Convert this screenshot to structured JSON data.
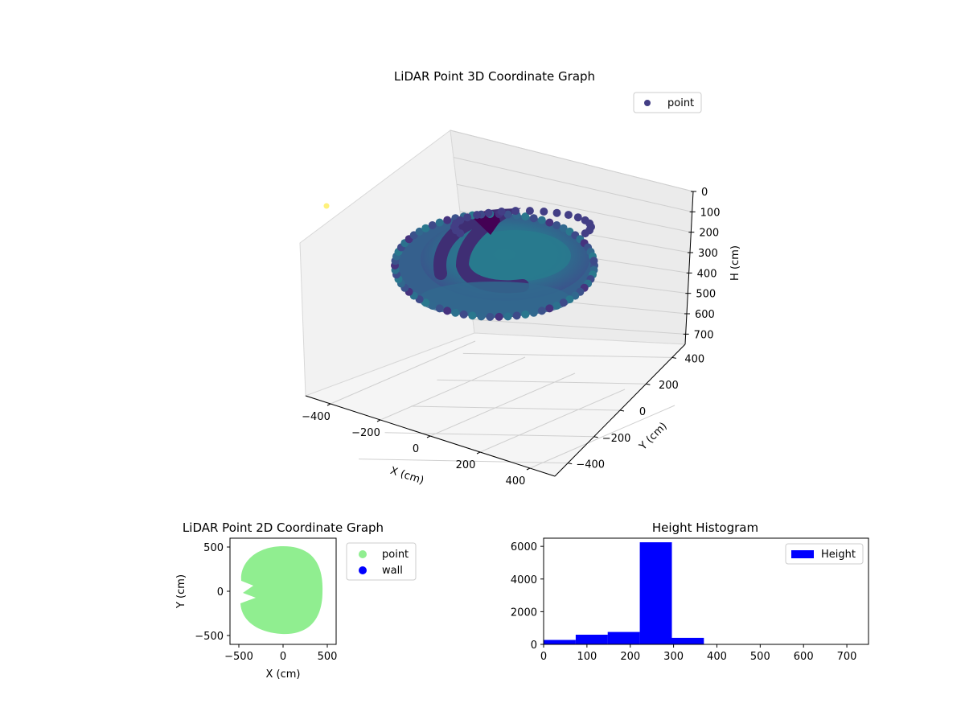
{
  "chart_data": [
    {
      "type": "scatter",
      "title": "LiDAR Point 3D Coordinate Graph",
      "xlabel": "X (cm)",
      "ylabel": "Y (cm)",
      "zlabel": "H (cm)",
      "legend": {
        "entries": [
          "point"
        ],
        "placement": "top-right"
      },
      "xlim": [
        -500,
        500
      ],
      "ylim": [
        -500,
        500
      ],
      "zlim": [
        750,
        0
      ],
      "x_ticks": [
        "−400",
        "−200",
        "0",
        "200",
        "400"
      ],
      "y_ticks": [
        "−400",
        "−200",
        "0",
        "200",
        "400"
      ],
      "z_ticks": [
        "0",
        "100",
        "200",
        "300",
        "400",
        "500",
        "600",
        "700"
      ],
      "grid": true,
      "colormap": "viridis",
      "series": [
        {
          "name": "point",
          "color": "#433e85"
        }
      ]
    },
    {
      "type": "scatter",
      "title": "LiDAR Point 2D Coordinate Graph",
      "xlabel": "X (cm)",
      "ylabel": "Y (cm)",
      "xlim": [
        -600,
        600
      ],
      "ylim": [
        -600,
        600
      ],
      "x_ticks": [
        "−500",
        "0",
        "500"
      ],
      "y_ticks": [
        "−500",
        "0",
        "500"
      ],
      "legend": {
        "placement": "outside-right"
      },
      "series": [
        {
          "name": "point",
          "color": "#90ee90",
          "shape": "disk",
          "radius": 500,
          "notch_left": true
        },
        {
          "name": "wall",
          "color": "#0000ff",
          "points": []
        }
      ]
    },
    {
      "type": "bar",
      "title": "Height Histogram",
      "legend": {
        "entries": [
          "Height"
        ],
        "placement": "top-right"
      },
      "color": "#0000ff",
      "xlim": [
        0,
        750
      ],
      "ylim": [
        0,
        6500
      ],
      "x_ticks": [
        "0",
        "100",
        "200",
        "300",
        "400",
        "500",
        "600",
        "700"
      ],
      "y_ticks": [
        "0",
        "2000",
        "4000",
        "6000"
      ],
      "bins": [
        {
          "from": 0,
          "to": 74,
          "count": 270
        },
        {
          "from": 74,
          "to": 148,
          "count": 590
        },
        {
          "from": 148,
          "to": 222,
          "count": 760
        },
        {
          "from": 222,
          "to": 296,
          "count": 6250
        },
        {
          "from": 296,
          "to": 370,
          "count": 400
        },
        {
          "from": 370,
          "to": 444,
          "count": 0
        },
        {
          "from": 444,
          "to": 518,
          "count": 0
        },
        {
          "from": 518,
          "to": 592,
          "count": 0
        },
        {
          "from": 592,
          "to": 666,
          "count": 0
        },
        {
          "from": 666,
          "to": 740,
          "count": 0
        }
      ]
    }
  ]
}
